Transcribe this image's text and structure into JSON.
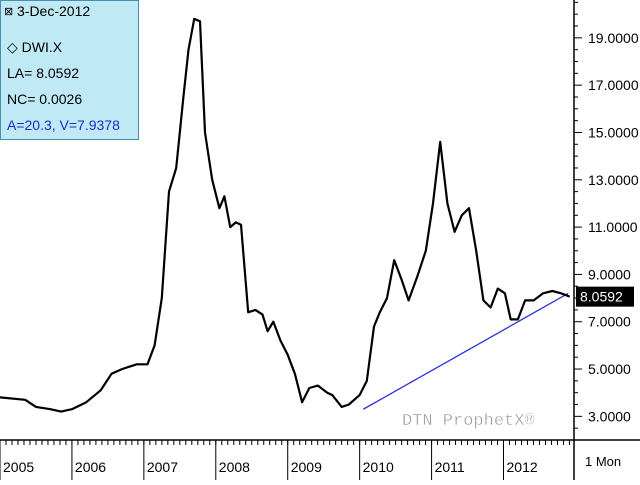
{
  "chart_data": {
    "type": "line",
    "title": "",
    "xlabel": "",
    "ylabel": "",
    "ylim": [
      2.0,
      20.6
    ],
    "xlim": [
      2005.0,
      2012.98
    ],
    "y_ticks": [
      3.0,
      5.0,
      7.0,
      9.0,
      11.0,
      13.0,
      15.0,
      17.0,
      19.0
    ],
    "y_tick_labels": [
      "3.0000",
      "5.0000",
      "7.0000",
      "9.0000",
      "11.0000",
      "13.0000",
      "15.0000",
      "17.0000",
      "19.0000"
    ],
    "x_ticks": [
      2005.0,
      2006.0,
      2007.0,
      2008.0,
      2009.0,
      2010.0,
      2011.0,
      2012.0
    ],
    "x_tick_labels": [
      "2005",
      "2006",
      "2007",
      "2008",
      "2009",
      "2010",
      "2011",
      "2012"
    ],
    "period_label": "1 Mon",
    "grid": false,
    "series": [
      {
        "color": "#000000",
        "x": [
          2005.0,
          2005.35,
          2005.5,
          2005.7,
          2005.85,
          2006.0,
          2006.2,
          2006.4,
          2006.55,
          2006.7,
          2006.9,
          2007.05,
          2007.15,
          2007.25,
          2007.35,
          2007.45,
          2007.55,
          2007.62,
          2007.7,
          2007.78,
          2007.85,
          2007.95,
          2008.05,
          2008.12,
          2008.2,
          2008.28,
          2008.35,
          2008.45,
          2008.55,
          2008.65,
          2008.72,
          2008.8,
          2008.9,
          2009.0,
          2009.1,
          2009.2,
          2009.3,
          2009.42,
          2009.55,
          2009.62,
          2009.75,
          2009.85,
          2010.0,
          2010.1,
          2010.2,
          2010.28,
          2010.38,
          2010.48,
          2010.58,
          2010.68,
          2010.8,
          2010.92,
          2011.02,
          2011.12,
          2011.22,
          2011.32,
          2011.42,
          2011.52,
          2011.62,
          2011.72,
          2011.82,
          2011.92,
          2012.02,
          2012.1,
          2012.2,
          2012.3,
          2012.42,
          2012.55,
          2012.68,
          2012.8,
          2012.92
        ],
        "y": [
          3.8,
          3.7,
          3.4,
          3.3,
          3.2,
          3.3,
          3.6,
          4.1,
          4.8,
          5.0,
          5.2,
          5.2,
          6.0,
          8.0,
          12.5,
          13.5,
          16.5,
          18.5,
          19.8,
          19.7,
          15.0,
          13.0,
          11.8,
          12.3,
          11.0,
          11.2,
          11.1,
          7.4,
          7.5,
          7.3,
          6.6,
          7.0,
          6.2,
          5.6,
          4.8,
          3.6,
          4.2,
          4.3,
          4.0,
          3.9,
          3.4,
          3.5,
          3.9,
          4.5,
          6.8,
          7.4,
          8.0,
          9.6,
          8.8,
          7.9,
          8.9,
          10.0,
          12.0,
          14.6,
          12.0,
          10.8,
          11.5,
          11.8,
          10.0,
          7.9,
          7.6,
          8.4,
          8.2,
          7.1,
          7.1,
          7.9,
          7.9,
          8.2,
          8.3,
          8.2,
          8.06
        ]
      }
    ],
    "trendline": {
      "color": "#2b34d6",
      "x": [
        2010.05,
        2012.9
      ],
      "y": [
        3.3,
        8.2
      ]
    },
    "last_value_label": "8.0592"
  },
  "info_box": {
    "date": "3-Dec-2012",
    "symbol": "DWI.X",
    "last_line": "LA= 8.0592",
    "change_line": "NC= 0.0026",
    "angle_line": "A=20.3, V=7.9378"
  },
  "watermark": "DTN ProphetX®",
  "colors": {
    "background": "#ffffff",
    "infobox_bg": "#bfe9f5",
    "line": "#000000",
    "trendline": "#2b34d6",
    "price_tag_bg": "#000000"
  }
}
